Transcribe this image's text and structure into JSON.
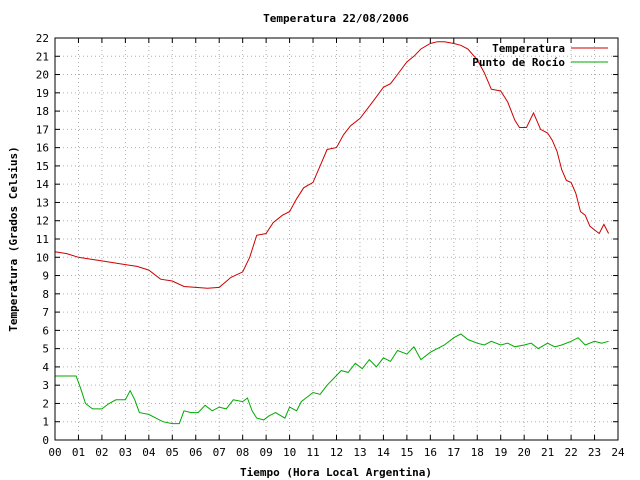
{
  "chart_data": {
    "type": "line",
    "title": "Temperatura 22/08/2006",
    "xlabel": "Tiempo (Hora Local Argentina)",
    "ylabel": "Temperatura (Grados Celsius)",
    "xlim": [
      0,
      24
    ],
    "ylim": [
      0,
      22
    ],
    "x_ticks": [
      "00",
      "01",
      "02",
      "03",
      "04",
      "05",
      "06",
      "07",
      "08",
      "09",
      "10",
      "11",
      "12",
      "13",
      "14",
      "15",
      "16",
      "17",
      "18",
      "19",
      "20",
      "21",
      "22",
      "23",
      "24"
    ],
    "y_ticks": [
      "0",
      "1",
      "2",
      "3",
      "4",
      "5",
      "6",
      "7",
      "8",
      "9",
      "10",
      "11",
      "12",
      "13",
      "14",
      "15",
      "16",
      "17",
      "18",
      "19",
      "20",
      "21",
      "22"
    ],
    "grid": true,
    "legend_position": "top-right",
    "series": [
      {
        "name": "Temperatura",
        "color": "#cc0000",
        "points": [
          [
            0.0,
            10.3
          ],
          [
            0.5,
            10.2
          ],
          [
            1.0,
            10.0
          ],
          [
            1.5,
            9.9
          ],
          [
            2.0,
            9.8
          ],
          [
            2.5,
            9.7
          ],
          [
            3.0,
            9.6
          ],
          [
            3.5,
            9.5
          ],
          [
            4.0,
            9.3
          ],
          [
            4.5,
            8.8
          ],
          [
            5.0,
            8.7
          ],
          [
            5.5,
            8.4
          ],
          [
            6.0,
            8.35
          ],
          [
            6.5,
            8.3
          ],
          [
            7.0,
            8.35
          ],
          [
            7.5,
            8.9
          ],
          [
            8.0,
            9.2
          ],
          [
            8.3,
            10.0
          ],
          [
            8.6,
            11.2
          ],
          [
            9.0,
            11.3
          ],
          [
            9.3,
            11.9
          ],
          [
            9.7,
            12.3
          ],
          [
            10.0,
            12.5
          ],
          [
            10.3,
            13.2
          ],
          [
            10.6,
            13.8
          ],
          [
            11.0,
            14.1
          ],
          [
            11.3,
            15.0
          ],
          [
            11.6,
            15.9
          ],
          [
            12.0,
            16.0
          ],
          [
            12.3,
            16.7
          ],
          [
            12.6,
            17.2
          ],
          [
            13.0,
            17.6
          ],
          [
            13.3,
            18.1
          ],
          [
            13.6,
            18.6
          ],
          [
            14.0,
            19.3
          ],
          [
            14.3,
            19.5
          ],
          [
            14.6,
            20.0
          ],
          [
            15.0,
            20.7
          ],
          [
            15.3,
            21.0
          ],
          [
            15.6,
            21.4
          ],
          [
            16.0,
            21.7
          ],
          [
            16.3,
            21.8
          ],
          [
            16.6,
            21.8
          ],
          [
            17.0,
            21.7
          ],
          [
            17.3,
            21.6
          ],
          [
            17.6,
            21.4
          ],
          [
            18.0,
            20.8
          ],
          [
            18.3,
            20.1
          ],
          [
            18.6,
            19.2
          ],
          [
            19.0,
            19.1
          ],
          [
            19.3,
            18.5
          ],
          [
            19.6,
            17.5
          ],
          [
            19.8,
            17.1
          ],
          [
            20.1,
            17.1
          ],
          [
            20.4,
            17.9
          ],
          [
            20.7,
            17.0
          ],
          [
            21.0,
            16.8
          ],
          [
            21.2,
            16.4
          ],
          [
            21.4,
            15.8
          ],
          [
            21.6,
            14.8
          ],
          [
            21.8,
            14.2
          ],
          [
            22.0,
            14.1
          ],
          [
            22.2,
            13.5
          ],
          [
            22.4,
            12.5
          ],
          [
            22.6,
            12.3
          ],
          [
            22.8,
            11.7
          ],
          [
            23.0,
            11.5
          ],
          [
            23.2,
            11.3
          ],
          [
            23.4,
            11.8
          ],
          [
            23.6,
            11.3
          ]
        ]
      },
      {
        "name": "Punto de Rocío",
        "color": "#00aa00",
        "points": [
          [
            0.0,
            3.5
          ],
          [
            0.5,
            3.5
          ],
          [
            0.9,
            3.5
          ],
          [
            1.1,
            2.8
          ],
          [
            1.3,
            2.0
          ],
          [
            1.6,
            1.7
          ],
          [
            2.0,
            1.7
          ],
          [
            2.3,
            2.0
          ],
          [
            2.6,
            2.2
          ],
          [
            3.0,
            2.2
          ],
          [
            3.2,
            2.7
          ],
          [
            3.4,
            2.2
          ],
          [
            3.6,
            1.5
          ],
          [
            4.0,
            1.4
          ],
          [
            4.3,
            1.2
          ],
          [
            4.6,
            1.0
          ],
          [
            5.0,
            0.9
          ],
          [
            5.3,
            0.9
          ],
          [
            5.5,
            1.6
          ],
          [
            5.8,
            1.5
          ],
          [
            6.1,
            1.5
          ],
          [
            6.4,
            1.9
          ],
          [
            6.7,
            1.6
          ],
          [
            7.0,
            1.8
          ],
          [
            7.3,
            1.7
          ],
          [
            7.6,
            2.2
          ],
          [
            8.0,
            2.1
          ],
          [
            8.2,
            2.3
          ],
          [
            8.4,
            1.6
          ],
          [
            8.6,
            1.2
          ],
          [
            8.9,
            1.1
          ],
          [
            9.1,
            1.3
          ],
          [
            9.4,
            1.5
          ],
          [
            9.8,
            1.2
          ],
          [
            10.0,
            1.8
          ],
          [
            10.3,
            1.6
          ],
          [
            10.5,
            2.1
          ],
          [
            10.8,
            2.4
          ],
          [
            11.0,
            2.6
          ],
          [
            11.3,
            2.5
          ],
          [
            11.6,
            3.0
          ],
          [
            11.9,
            3.4
          ],
          [
            12.2,
            3.8
          ],
          [
            12.5,
            3.7
          ],
          [
            12.8,
            4.2
          ],
          [
            13.1,
            3.9
          ],
          [
            13.4,
            4.4
          ],
          [
            13.7,
            4.0
          ],
          [
            14.0,
            4.5
          ],
          [
            14.3,
            4.3
          ],
          [
            14.6,
            4.9
          ],
          [
            15.0,
            4.7
          ],
          [
            15.3,
            5.1
          ],
          [
            15.6,
            4.4
          ],
          [
            16.0,
            4.8
          ],
          [
            16.3,
            5.0
          ],
          [
            16.6,
            5.2
          ],
          [
            17.0,
            5.6
          ],
          [
            17.3,
            5.8
          ],
          [
            17.6,
            5.5
          ],
          [
            18.0,
            5.3
          ],
          [
            18.3,
            5.2
          ],
          [
            18.6,
            5.4
          ],
          [
            19.0,
            5.2
          ],
          [
            19.3,
            5.3
          ],
          [
            19.6,
            5.1
          ],
          [
            20.0,
            5.2
          ],
          [
            20.3,
            5.3
          ],
          [
            20.6,
            5.0
          ],
          [
            21.0,
            5.3
          ],
          [
            21.3,
            5.1
          ],
          [
            21.6,
            5.2
          ],
          [
            22.0,
            5.4
          ],
          [
            22.3,
            5.6
          ],
          [
            22.6,
            5.2
          ],
          [
            23.0,
            5.4
          ],
          [
            23.3,
            5.3
          ],
          [
            23.6,
            5.4
          ]
        ]
      }
    ]
  }
}
